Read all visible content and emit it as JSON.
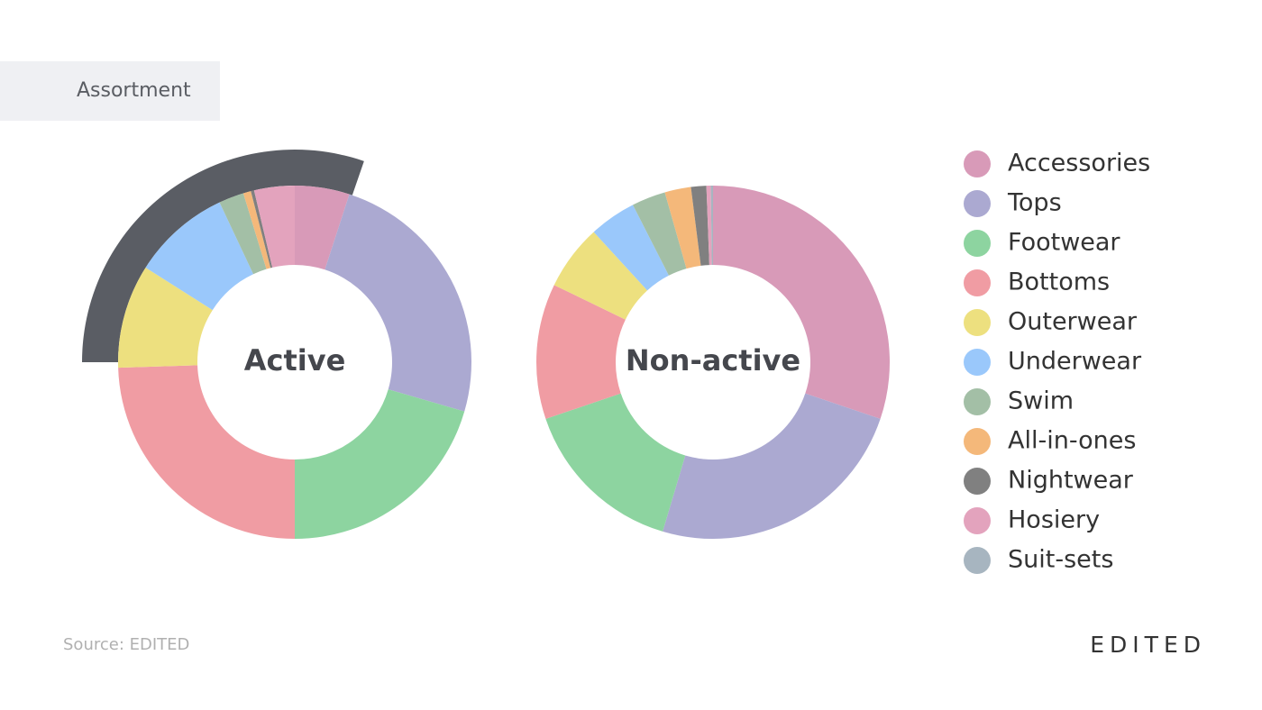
{
  "header": "Assortment",
  "chart_data": {
    "type": "donut",
    "categories": [
      "Accessories",
      "Tops",
      "Footwear",
      "Bottoms",
      "Outerwear",
      "Underwear",
      "Swim",
      "All-in-ones",
      "Nightwear",
      "Hosiery",
      "Suit-sets"
    ],
    "colors": [
      "#d89ab8",
      "#aba9d1",
      "#8dd4a0",
      "#f09ca3",
      "#ede07f",
      "#9ac8fb",
      "#a3bfa6",
      "#f4b87a",
      "#808080",
      "#e3a3bd",
      "#a7b5c0"
    ],
    "series": [
      {
        "name": "Active",
        "values": [
          5,
          24.5,
          20.5,
          24.5,
          9.5,
          9,
          2.3,
          0.7,
          0.3,
          3.7,
          0
        ]
      },
      {
        "name": "Non-active",
        "values": [
          30.2,
          24.4,
          15.2,
          12.4,
          6,
          4.3,
          3.1,
          2.4,
          1.4,
          0.4,
          0.2
        ]
      }
    ]
  },
  "source": "Source: EDITED",
  "brand": "EDITED"
}
